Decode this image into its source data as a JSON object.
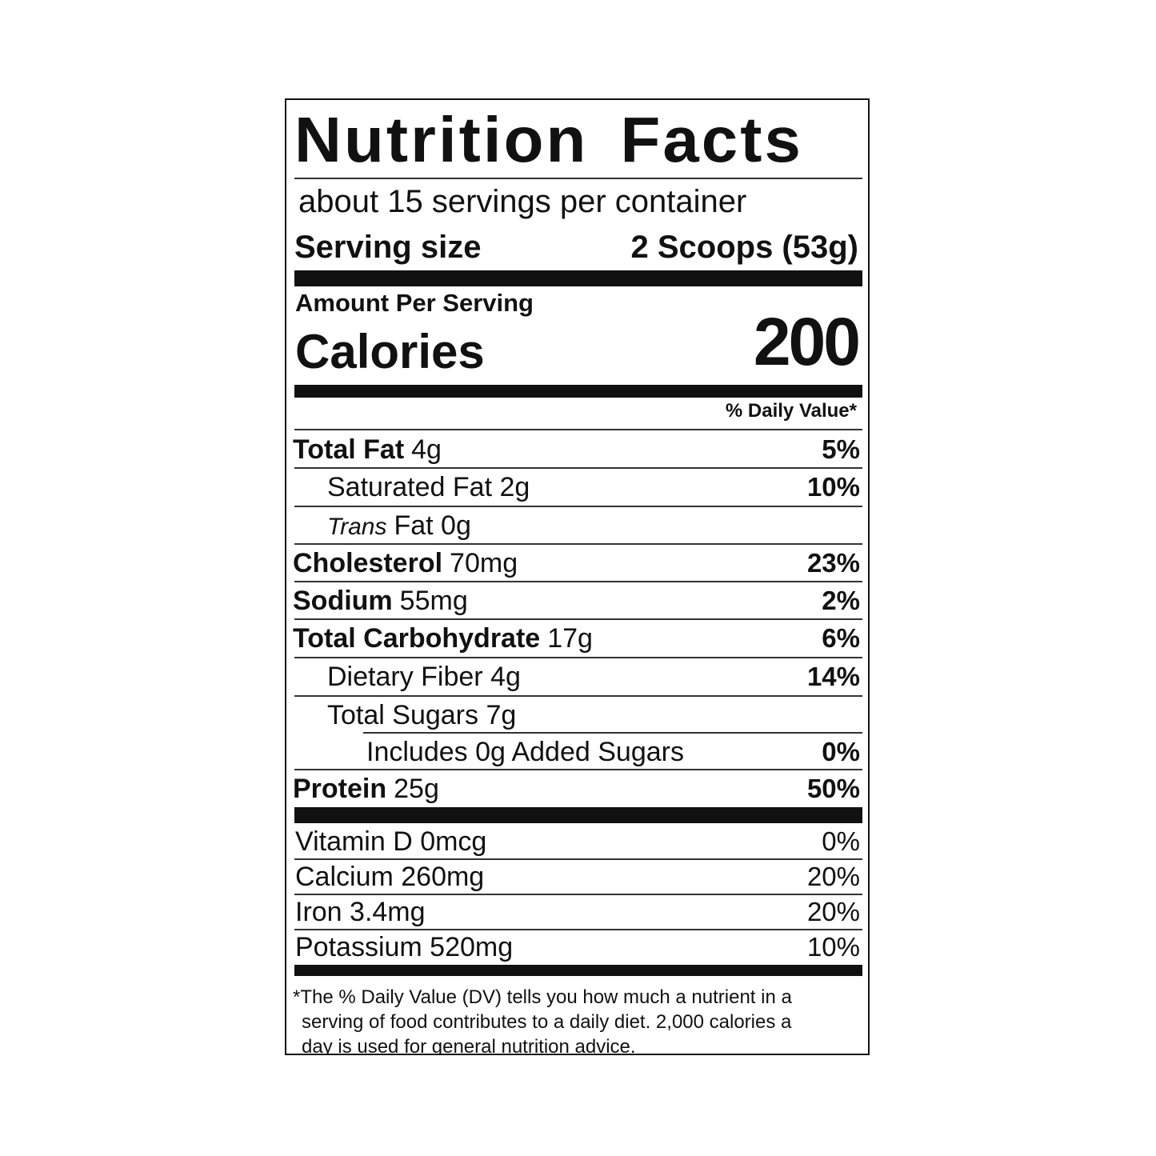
{
  "title": "Nutrition Facts",
  "servings_per_container": "about 15 servings per container",
  "serving_size": {
    "label": "Serving size",
    "value": "2 Scoops (53g)"
  },
  "amount_per_serving": "Amount Per Serving",
  "calories": {
    "label": "Calories",
    "value": "200"
  },
  "daily_value_header": "% Daily Value*",
  "nutrients": {
    "total_fat": {
      "name": "Total Fat",
      "amount": "4g",
      "dv": "5%"
    },
    "saturated_fat": {
      "name": "Saturated Fat 2g",
      "dv": "10%"
    },
    "trans_fat": {
      "prefix": "Trans",
      "name": "Fat 0g"
    },
    "cholesterol": {
      "name": "Cholesterol",
      "amount": "70mg",
      "dv": "23%"
    },
    "sodium": {
      "name": "Sodium",
      "amount": "55mg",
      "dv": "2%"
    },
    "total_carbohydrate": {
      "name": "Total Carbohydrate",
      "amount": "17g",
      "dv": "6%"
    },
    "dietary_fiber": {
      "name": "Dietary Fiber 4g",
      "dv": "14%"
    },
    "total_sugars": {
      "name": "Total Sugars 7g"
    },
    "added_sugars": {
      "name": "Includes 0g Added Sugars",
      "dv": "0%"
    },
    "protein": {
      "name": "Protein",
      "amount": "25g",
      "dv": "50%"
    }
  },
  "vitamins": {
    "vitamin_d": {
      "name": "Vitamin D 0mcg",
      "dv": "0%"
    },
    "calcium": {
      "name": "Calcium 260mg",
      "dv": "20%"
    },
    "iron": {
      "name": "Iron 3.4mg",
      "dv": "20%"
    },
    "potassium": {
      "name": "Potassium 520mg",
      "dv": "10%"
    }
  },
  "footnote": {
    "line1": "*The % Daily Value (DV) tells you how much a nutrient in a",
    "line2": "serving of food contributes to a daily diet. 2,000 calories a",
    "line3": "day is used for general nutrition advice."
  }
}
